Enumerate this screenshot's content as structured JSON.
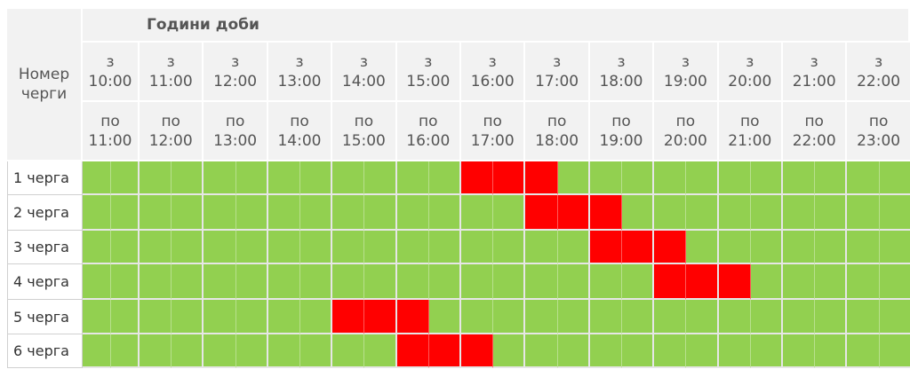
{
  "header": {
    "hours_title": "Години доби",
    "queue_title": "Номер черги"
  },
  "columns": [
    {
      "from_prefix": "з",
      "from": "10:00",
      "to_prefix": "по",
      "to": "11:00"
    },
    {
      "from_prefix": "з",
      "from": "11:00",
      "to_prefix": "по",
      "to": "12:00"
    },
    {
      "from_prefix": "з",
      "from": "12:00",
      "to_prefix": "по",
      "to": "13:00"
    },
    {
      "from_prefix": "з",
      "from": "13:00",
      "to_prefix": "по",
      "to": "14:00"
    },
    {
      "from_prefix": "з",
      "from": "14:00",
      "to_prefix": "по",
      "to": "15:00"
    },
    {
      "from_prefix": "з",
      "from": "15:00",
      "to_prefix": "по",
      "to": "16:00"
    },
    {
      "from_prefix": "з",
      "from": "16:00",
      "to_prefix": "по",
      "to": "17:00"
    },
    {
      "from_prefix": "з",
      "from": "17:00",
      "to_prefix": "по",
      "to": "18:00"
    },
    {
      "from_prefix": "з",
      "from": "18:00",
      "to_prefix": "по",
      "to": "19:00"
    },
    {
      "from_prefix": "з",
      "from": "19:00",
      "to_prefix": "по",
      "to": "20:00"
    },
    {
      "from_prefix": "з",
      "from": "20:00",
      "to_prefix": "по",
      "to": "21:00"
    },
    {
      "from_prefix": "з",
      "from": "21:00",
      "to_prefix": "по",
      "to": "22:00"
    },
    {
      "from_prefix": "з",
      "from": "22:00",
      "to_prefix": "по",
      "to": "23:00"
    }
  ],
  "colors": {
    "power_on": "#92d050",
    "outage": "#ff0000"
  },
  "rows": [
    {
      "label": "1 черга",
      "outage": [
        false,
        false,
        false,
        false,
        false,
        false,
        false,
        false,
        false,
        false,
        false,
        false,
        true,
        true,
        true,
        false,
        false,
        false,
        false,
        false,
        false,
        false,
        false,
        false,
        false,
        false
      ]
    },
    {
      "label": "2 черга",
      "outage": [
        false,
        false,
        false,
        false,
        false,
        false,
        false,
        false,
        false,
        false,
        false,
        false,
        false,
        false,
        true,
        true,
        true,
        false,
        false,
        false,
        false,
        false,
        false,
        false,
        false,
        false
      ]
    },
    {
      "label": "3 черга",
      "outage": [
        false,
        false,
        false,
        false,
        false,
        false,
        false,
        false,
        false,
        false,
        false,
        false,
        false,
        false,
        false,
        false,
        true,
        true,
        true,
        false,
        false,
        false,
        false,
        false,
        false,
        false
      ]
    },
    {
      "label": "4 черга",
      "outage": [
        false,
        false,
        false,
        false,
        false,
        false,
        false,
        false,
        false,
        false,
        false,
        false,
        false,
        false,
        false,
        false,
        false,
        false,
        true,
        true,
        true,
        false,
        false,
        false,
        false,
        false
      ]
    },
    {
      "label": "5 черга",
      "outage": [
        false,
        false,
        false,
        false,
        false,
        false,
        false,
        false,
        true,
        true,
        true,
        false,
        false,
        false,
        false,
        false,
        false,
        false,
        false,
        false,
        false,
        false,
        false,
        false,
        false,
        false
      ]
    },
    {
      "label": "6 черга",
      "outage": [
        false,
        false,
        false,
        false,
        false,
        false,
        false,
        false,
        false,
        false,
        true,
        true,
        true,
        false,
        false,
        false,
        false,
        false,
        false,
        false,
        false,
        false,
        false,
        false,
        false,
        false
      ]
    }
  ]
}
